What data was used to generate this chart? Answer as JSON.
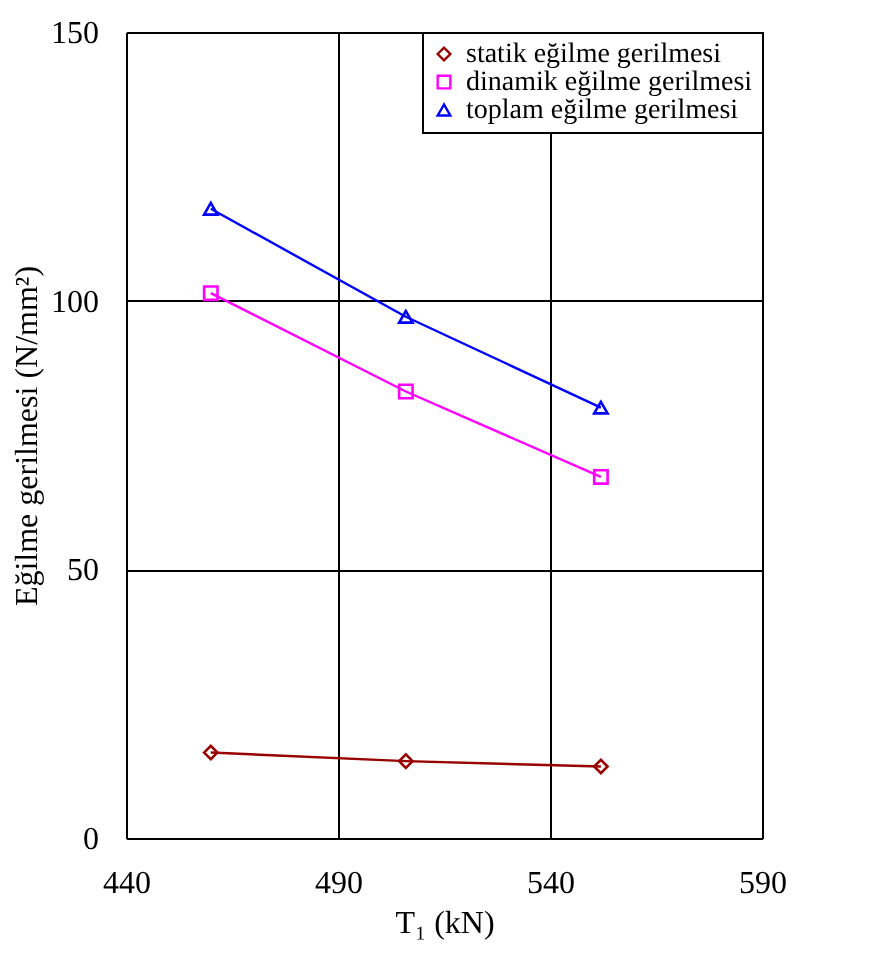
{
  "chart_data": {
    "type": "line",
    "xlabel": "T₁  (kN)",
    "ylabel": "Eğilme gerilmesi  (N/mm²)",
    "x": [
      460,
      506,
      552
    ],
    "series": [
      {
        "name": "statik eğilme gerilmesi",
        "color": "#990000",
        "marker": "diamond",
        "values": [
          15.9,
          14.3,
          13.3
        ]
      },
      {
        "name": "dinamik eğilme gerilmesi",
        "color": "#ff00ff",
        "marker": "square",
        "values": [
          101.4,
          83.1,
          67.2
        ]
      },
      {
        "name": "toplam eğilme gerilmesi",
        "color": "#0000ff",
        "marker": "triangle",
        "values": [
          117.1,
          97.0,
          80.1
        ]
      }
    ],
    "xlim": [
      440,
      590
    ],
    "xticks": [
      440,
      490,
      540,
      590
    ],
    "ylim": [
      0,
      150
    ],
    "yticks": [
      0,
      50,
      100,
      150
    ],
    "grid": true,
    "legend": "top right",
    "line_style": "solid"
  }
}
